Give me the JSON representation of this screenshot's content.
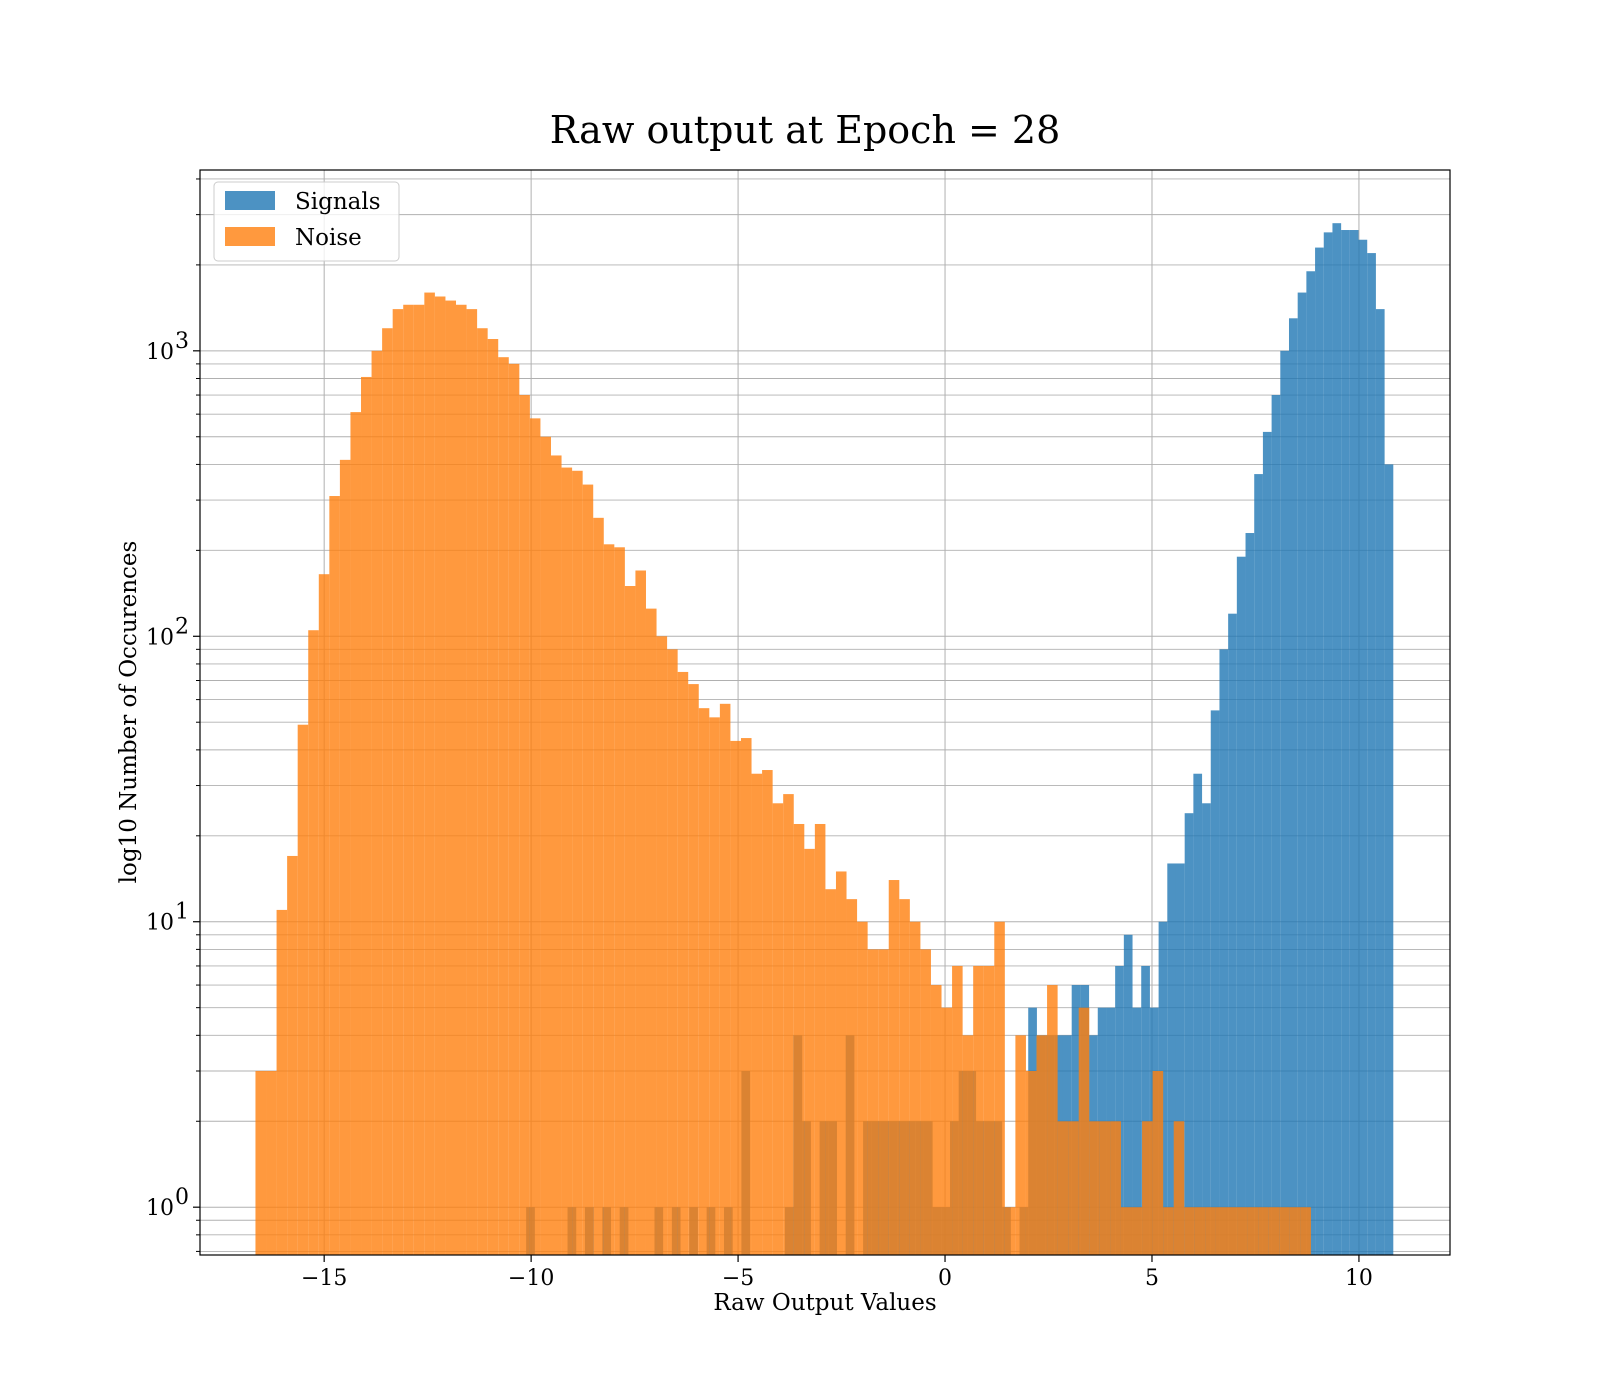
{
  "chart_data": {
    "type": "bar",
    "title": "Raw output at Epoch = 28",
    "xlabel": "Raw Output Values",
    "ylabel": "log10 Number of Occurences",
    "xlim": [
      -18,
      12.2
    ],
    "ylim": [
      0.68,
      4300
    ],
    "yscale": "log",
    "grid": true,
    "grid_minor": true,
    "legend": "top-left",
    "bar_opacity": 0.8,
    "x_ticks": [
      -15,
      -10,
      -5,
      0,
      5,
      10
    ],
    "x_tick_labels": [
      "−15",
      "−10",
      "−5",
      "0",
      "5",
      "10"
    ],
    "y_ticks": [
      {
        "value": 1,
        "base": "10",
        "exp": "0"
      },
      {
        "value": 10,
        "base": "10",
        "exp": "1"
      },
      {
        "value": 100,
        "base": "10",
        "exp": "2"
      },
      {
        "value": 1000,
        "base": "10",
        "exp": "3"
      }
    ],
    "series": [
      {
        "name": "Signals",
        "color": "#1f77b4",
        "bin_width": 0.21,
        "bin_starts": [
          -10.12,
          -9.12,
          -8.7,
          -8.28,
          -7.86,
          -7.02,
          -6.6,
          -6.18,
          -5.76,
          -5.34,
          -4.92,
          -3.87,
          -3.66,
          -3.45,
          -3.03,
          -2.82,
          -2.4,
          -1.98,
          -1.77,
          -1.56,
          -1.35,
          -1.14,
          -0.93,
          -0.72,
          -0.51,
          -0.3,
          -0.09,
          0.12,
          0.33,
          0.54,
          0.75,
          0.96,
          1.17,
          1.38,
          1.8,
          2.01,
          2.22,
          2.43,
          2.64,
          2.85,
          3.06,
          3.27,
          3.48,
          3.69,
          3.9,
          4.11,
          4.32,
          4.53,
          4.74,
          4.95,
          5.16,
          5.37,
          5.58,
          5.79,
          6.0,
          6.21,
          6.42,
          6.63,
          6.84,
          7.05,
          7.26,
          7.47,
          7.68,
          7.89,
          8.1,
          8.31,
          8.52,
          8.73,
          8.94,
          9.15,
          9.36,
          9.57,
          9.78,
          9.99,
          10.2,
          10.41,
          10.62
        ],
        "values": [
          1,
          1,
          1,
          1,
          1,
          1,
          1,
          1,
          1,
          1,
          3,
          1,
          4,
          2,
          2,
          2,
          4,
          2,
          2,
          2,
          2,
          2,
          2,
          2,
          2,
          1,
          1,
          2,
          3,
          3,
          2,
          2,
          2,
          1,
          1,
          5,
          4,
          4,
          4,
          4,
          6,
          6,
          4,
          5,
          5,
          7,
          9,
          5,
          7,
          5,
          10,
          16,
          16,
          24,
          33,
          26,
          55,
          90,
          120,
          190,
          230,
          370,
          520,
          700,
          1000,
          1300,
          1600,
          1900,
          2300,
          2600,
          2800,
          2650,
          2650,
          2450,
          2200,
          1400,
          400
        ]
      },
      {
        "name": "Noise",
        "color": "#ff7f0e",
        "bin_width": 0.255,
        "bin_starts": [
          -16.66,
          -16.405,
          -16.15,
          -15.895,
          -15.64,
          -15.385,
          -15.13,
          -14.875,
          -14.62,
          -14.365,
          -14.11,
          -13.855,
          -13.6,
          -13.345,
          -13.09,
          -12.835,
          -12.58,
          -12.325,
          -12.07,
          -11.815,
          -11.56,
          -11.305,
          -11.05,
          -10.795,
          -10.54,
          -10.285,
          -10.03,
          -9.775,
          -9.52,
          -9.265,
          -9.01,
          -8.755,
          -8.5,
          -8.245,
          -7.99,
          -7.735,
          -7.48,
          -7.225,
          -6.97,
          -6.715,
          -6.46,
          -6.205,
          -5.95,
          -5.695,
          -5.44,
          -5.185,
          -4.93,
          -4.675,
          -4.42,
          -4.165,
          -3.91,
          -3.655,
          -3.4,
          -3.145,
          -2.89,
          -2.635,
          -2.38,
          -2.125,
          -1.87,
          -1.615,
          -1.36,
          -1.105,
          -0.85,
          -0.595,
          -0.34,
          -0.085,
          0.17,
          0.425,
          0.68,
          0.935,
          1.19,
          1.445,
          1.7,
          1.955,
          2.21,
          2.465,
          2.72,
          2.975,
          3.23,
          3.485,
          3.74,
          3.995,
          4.25,
          4.505,
          4.76,
          5.015,
          5.27,
          5.525,
          5.78,
          6.035,
          6.29,
          6.545,
          6.8,
          7.055,
          7.31,
          7.565,
          7.82,
          8.075,
          8.33,
          8.585
        ],
        "values": [
          3,
          3,
          11,
          17,
          49,
          105,
          165,
          310,
          415,
          610,
          810,
          1000,
          1200,
          1400,
          1450,
          1450,
          1600,
          1550,
          1500,
          1450,
          1400,
          1200,
          1100,
          950,
          900,
          700,
          580,
          500,
          430,
          390,
          380,
          340,
          260,
          210,
          205,
          150,
          170,
          125,
          100,
          90,
          75,
          68,
          56,
          52,
          58,
          43,
          44,
          33,
          34,
          26,
          28,
          22,
          18,
          22,
          13,
          15,
          12,
          10,
          8,
          8,
          14,
          12,
          10,
          8,
          6,
          5,
          7,
          4,
          7,
          7,
          10,
          1,
          4,
          3,
          4,
          6,
          2,
          2,
          5,
          2,
          2,
          2,
          1,
          1,
          2,
          3,
          1,
          2,
          1,
          1,
          1,
          1,
          1,
          1,
          1,
          1,
          1,
          1,
          1,
          1
        ]
      }
    ]
  }
}
